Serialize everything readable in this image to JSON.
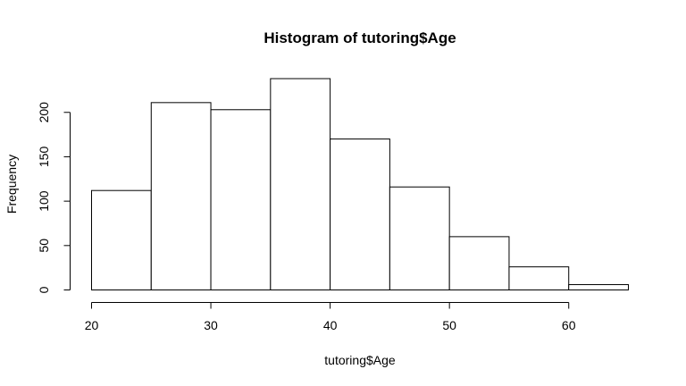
{
  "chart_data": {
    "type": "bar",
    "title": "Histogram of tutoring$Age",
    "xlabel": "tutoring$Age",
    "ylabel": "Frequency",
    "bins": [
      {
        "start": 20,
        "end": 25,
        "value": 112
      },
      {
        "start": 25,
        "end": 30,
        "value": 211
      },
      {
        "start": 30,
        "end": 35,
        "value": 203
      },
      {
        "start": 35,
        "end": 40,
        "value": 238
      },
      {
        "start": 40,
        "end": 45,
        "value": 170
      },
      {
        "start": 45,
        "end": 50,
        "value": 116
      },
      {
        "start": 50,
        "end": 55,
        "value": 60
      },
      {
        "start": 55,
        "end": 60,
        "value": 26
      },
      {
        "start": 60,
        "end": 65,
        "value": 6
      }
    ],
    "xlim": [
      20,
      65
    ],
    "ylim": [
      0,
      238
    ],
    "xticks": [
      20,
      30,
      40,
      50,
      60
    ],
    "yticks": [
      0,
      50,
      100,
      150,
      200
    ],
    "xtick_labels": [
      "20",
      "30",
      "40",
      "50",
      "60"
    ],
    "ytick_labels": [
      "0",
      "50",
      "100",
      "150",
      "200"
    ],
    "grid": false,
    "legend": "none",
    "colors": {
      "bar_fill": "#ffffff",
      "bar_stroke": "#000000"
    }
  }
}
